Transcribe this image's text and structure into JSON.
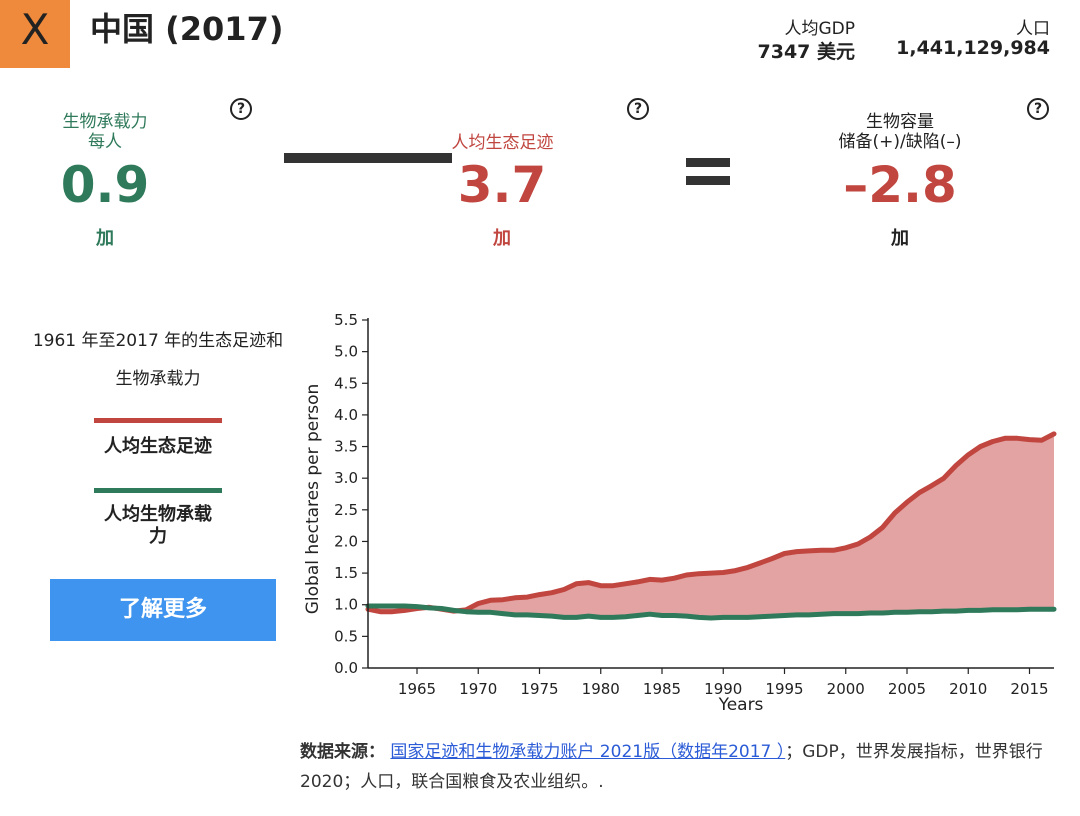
{
  "header": {
    "close_label": "X",
    "title": "中国 (2017)",
    "gdp_label": "人均GDP",
    "gdp_value": "7347 美元",
    "population_label": "人口",
    "population_value": "1,441,129,984",
    "close_color": "#ef8a3c"
  },
  "equation": {
    "help_glyph": "?",
    "biocapacity": {
      "label_line1": "生物承载力",
      "label_line2": "每人",
      "value": "0.9",
      "unit": "加",
      "color": "#2f7a5b"
    },
    "footprint": {
      "label": "人均生态足迹",
      "value": "3.7",
      "unit": "加",
      "color": "#c0463f"
    },
    "reserve": {
      "label_line1": "生物容量",
      "label_line2": "储备(+)/缺陷(–)",
      "value": "–2.8",
      "unit": "加",
      "color": "#c0463f"
    }
  },
  "legend": {
    "title_line1": "1961 年至2017 年的生态足迹和",
    "title_line2": "生物承载力",
    "footprint_label": "人均生态足迹",
    "biocapacity_label_line1": "人均生物承载",
    "biocapacity_label_line2": "力",
    "learn_more": "了解更多",
    "learn_more_color": "#3e94ee"
  },
  "source": {
    "prefix": "数据来源：",
    "link_text": "国家足迹和生物承载力账户 2021版（数据年2017 ）",
    "suffix": "；GDP，世界发展指标，世界银行 2020；人口，联合国粮食及农业组织。."
  },
  "chart_data": {
    "type": "area",
    "xlabel": "Years",
    "ylabel": "Global hectares per person",
    "xlim": [
      1961,
      2017
    ],
    "ylim": [
      0,
      5.5
    ],
    "x_ticks": [
      1965,
      1970,
      1975,
      1980,
      1985,
      1990,
      1995,
      2000,
      2005,
      2010,
      2015
    ],
    "y_ticks": [
      "0.0",
      "0.5",
      "1.0",
      "1.5",
      "2.0",
      "2.5",
      "3.0",
      "3.5",
      "4.0",
      "4.5",
      "5.0",
      "5.5"
    ],
    "x": [
      1961,
      1962,
      1963,
      1964,
      1965,
      1966,
      1967,
      1968,
      1969,
      1970,
      1971,
      1972,
      1973,
      1974,
      1975,
      1976,
      1977,
      1978,
      1979,
      1980,
      1981,
      1982,
      1983,
      1984,
      1985,
      1986,
      1987,
      1988,
      1989,
      1990,
      1991,
      1992,
      1993,
      1994,
      1995,
      1996,
      1997,
      1998,
      1999,
      2000,
      2001,
      2002,
      2003,
      2004,
      2005,
      2006,
      2007,
      2008,
      2009,
      2010,
      2011,
      2012,
      2013,
      2014,
      2015,
      2016,
      2017
    ],
    "series": [
      {
        "name": "人均生态足迹",
        "color": "#c0463f",
        "values": [
          0.93,
          0.89,
          0.89,
          0.91,
          0.94,
          0.96,
          0.93,
          0.9,
          0.92,
          1.02,
          1.07,
          1.08,
          1.11,
          1.12,
          1.16,
          1.19,
          1.24,
          1.33,
          1.35,
          1.3,
          1.3,
          1.33,
          1.36,
          1.4,
          1.39,
          1.42,
          1.47,
          1.49,
          1.5,
          1.51,
          1.54,
          1.59,
          1.66,
          1.73,
          1.81,
          1.84,
          1.85,
          1.86,
          1.86,
          1.9,
          1.96,
          2.07,
          2.22,
          2.45,
          2.62,
          2.77,
          2.88,
          3.0,
          3.2,
          3.37,
          3.5,
          3.58,
          3.63,
          3.63,
          3.61,
          3.6,
          3.7
        ]
      },
      {
        "name": "人均生物承载力",
        "color": "#2f7a5b",
        "values": [
          0.98,
          0.98,
          0.98,
          0.98,
          0.97,
          0.95,
          0.94,
          0.91,
          0.89,
          0.88,
          0.88,
          0.86,
          0.84,
          0.84,
          0.83,
          0.82,
          0.8,
          0.8,
          0.82,
          0.8,
          0.8,
          0.81,
          0.83,
          0.85,
          0.83,
          0.83,
          0.82,
          0.8,
          0.79,
          0.8,
          0.8,
          0.8,
          0.81,
          0.82,
          0.83,
          0.84,
          0.84,
          0.85,
          0.86,
          0.86,
          0.86,
          0.87,
          0.87,
          0.88,
          0.88,
          0.89,
          0.89,
          0.9,
          0.9,
          0.91,
          0.91,
          0.92,
          0.92,
          0.92,
          0.93,
          0.93,
          0.93
        ]
      }
    ],
    "fill_color": "#e3a3a3",
    "grid": false,
    "legend_position": "left"
  }
}
